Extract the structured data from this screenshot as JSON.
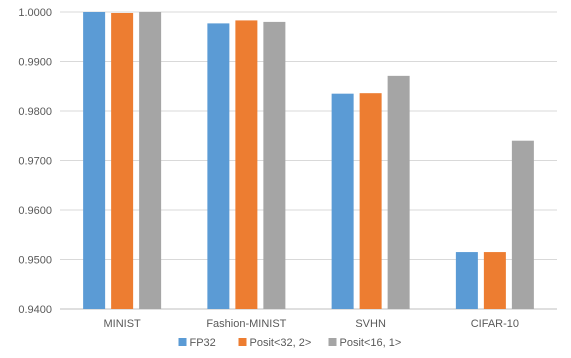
{
  "chart_data": {
    "type": "bar",
    "categories": [
      "MINIST",
      "Fashion-MINIST",
      "SVHN",
      "CIFAR-10"
    ],
    "series": [
      {
        "name": "FP32",
        "color": "#5b9bd5",
        "values": [
          1.0,
          0.9977,
          0.9835,
          0.9515
        ]
      },
      {
        "name": "Posit<32, 2>",
        "color": "#ed7d31",
        "values": [
          0.9998,
          0.9983,
          0.9836,
          0.9515
        ]
      },
      {
        "name": "Posit<16, 1>",
        "color": "#a5a5a5",
        "values": [
          1.0,
          0.998,
          0.9871,
          0.974
        ]
      }
    ],
    "ylim": [
      0.94,
      1.0
    ],
    "yticks": [
      "0.9400",
      "0.9500",
      "0.9600",
      "0.9700",
      "0.9800",
      "0.9900",
      "1.0000"
    ],
    "grid": true,
    "legend": "bottom"
  }
}
